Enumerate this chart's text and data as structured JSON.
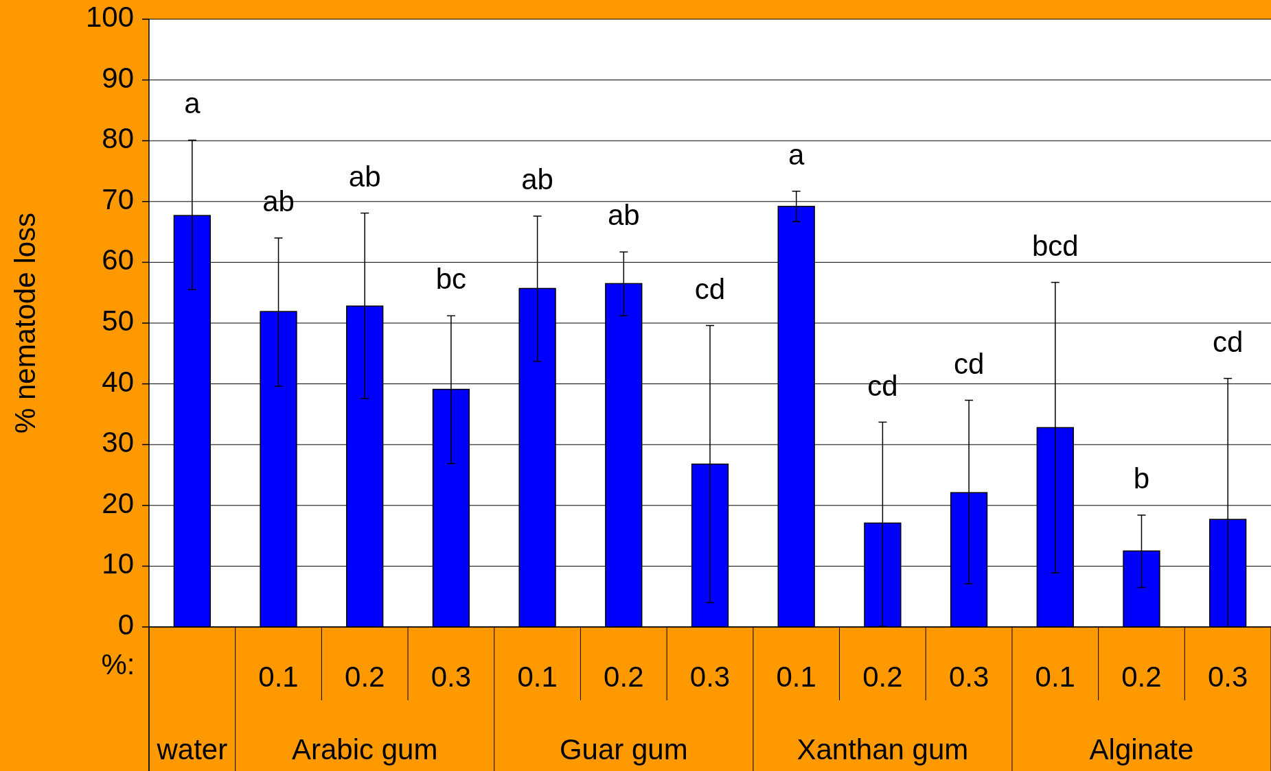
{
  "chart_data": {
    "type": "bar",
    "ylabel": "% nematode loss",
    "categories": [
      null,
      "0.1",
      "0.2",
      "0.3",
      "0.1",
      "0.2",
      "0.3",
      "0.1",
      "0.2",
      "0.3",
      "0.1",
      "0.2",
      "0.3"
    ],
    "values": [
      67.7,
      51.9,
      52.8,
      39.1,
      55.7,
      56.5,
      26.8,
      69.2,
      17.1,
      22.1,
      32.8,
      12.5,
      17.7
    ],
    "errors": [
      [
        55.5,
        80.1
      ],
      [
        39.6,
        64
      ],
      [
        37.6,
        68.1
      ],
      [
        26.9,
        51.2
      ],
      [
        43.7,
        67.6
      ],
      [
        51.2,
        61.7
      ],
      [
        4,
        49.6
      ],
      [
        66.7,
        71.7
      ],
      [
        0.1,
        33.7
      ],
      [
        7.1,
        37.3
      ],
      [
        8.9,
        56.7
      ],
      [
        6.5,
        18.4
      ],
      [
        0,
        40.9
      ]
    ],
    "color": "#0000ff",
    "ylim": [
      0,
      100
    ],
    "yticks": [
      0,
      10,
      20,
      30,
      40,
      50,
      60,
      70,
      80,
      90,
      100
    ],
    "grid": "y",
    "annotations": [
      "%:",
      "water",
      "Arabic gum",
      "Guar gum",
      "Xanthan gum",
      "Alginate",
      "a",
      "ab",
      "ab",
      "bc",
      "ab",
      "ab",
      "cd",
      "a",
      "cd",
      "cd",
      "bcd",
      "b",
      "cd"
    ]
  }
}
